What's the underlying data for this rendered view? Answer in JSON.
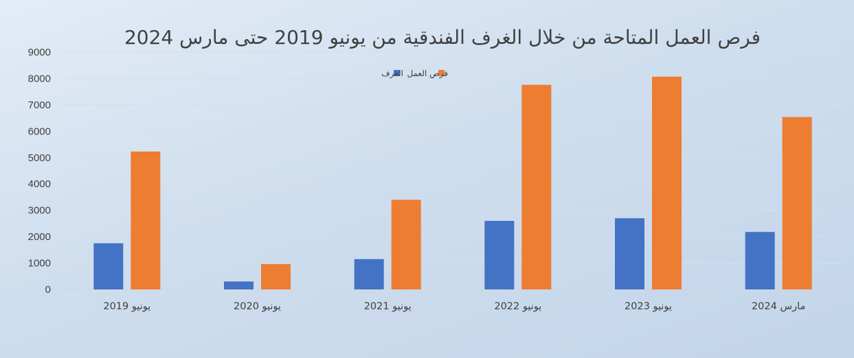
{
  "chart_data": {
    "type": "bar",
    "title": "فرص العمل المتاحة من خلال الغرف الفندقية من يونيو 2019 حتى مارس 2024",
    "categories": [
      "يونيو 2019",
      "يونيو 2020",
      "يونيو 2021",
      "يونيو 2022",
      "يونيو 2023",
      "مارس 2024"
    ],
    "series": [
      {
        "name": "الغرف",
        "color": "#4472c4",
        "values": [
          1750,
          300,
          1150,
          2600,
          2700,
          2180
        ]
      },
      {
        "name": "فرص العمل",
        "color": "#ed7d31",
        "values": [
          5230,
          960,
          3400,
          7760,
          8070,
          6540
        ]
      }
    ],
    "ylim": [
      0,
      9000
    ],
    "yticks": [
      0,
      1000,
      2000,
      3000,
      4000,
      5000,
      6000,
      7000,
      8000,
      9000
    ],
    "grid": true,
    "legend": "top-center"
  }
}
